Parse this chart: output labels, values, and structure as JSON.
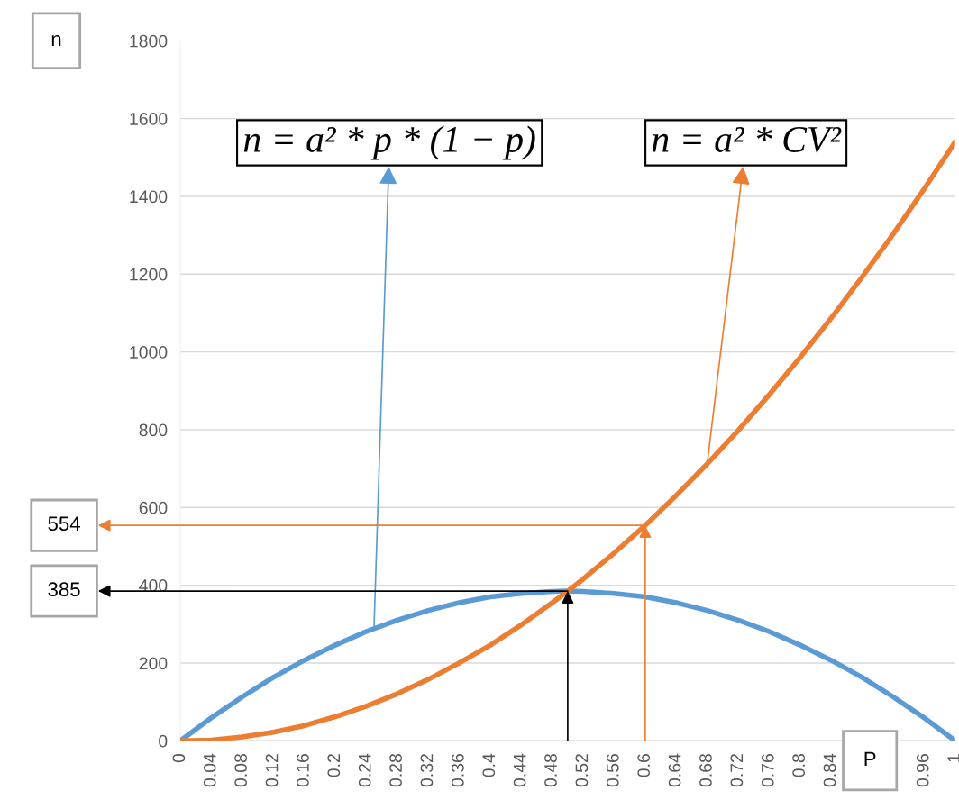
{
  "chart_data": {
    "type": "line",
    "xlabel": "P",
    "ylabel": "n",
    "x": [
      0,
      0.04,
      0.08,
      0.12,
      0.16,
      0.2,
      0.24,
      0.28,
      0.32,
      0.36,
      0.4,
      0.44,
      0.48,
      0.5,
      0.52,
      0.56,
      0.6,
      0.64,
      0.68,
      0.72,
      0.76,
      0.8,
      0.84,
      0.88,
      0.92,
      0.96,
      1
    ],
    "series": [
      {
        "color": "#5b9bd5",
        "values": [
          0,
          59,
          113,
          163,
          207,
          246,
          281,
          310,
          335,
          355,
          370,
          379,
          384,
          385,
          384,
          379,
          370,
          355,
          335,
          310,
          281,
          246,
          207,
          163,
          113,
          59,
          0
        ]
      },
      {
        "color": "#ed7d31",
        "values": [
          0,
          2,
          10,
          22,
          39,
          62,
          89,
          121,
          158,
          200,
          246,
          298,
          355,
          385,
          416,
          483,
          554,
          631,
          712,
          798,
          890,
          986,
          1087,
          1193,
          1303,
          1419,
          1540
        ]
      }
    ],
    "xlim": [
      0,
      1
    ],
    "ylim": [
      0,
      1800
    ],
    "xticks": [
      0,
      0.04,
      0.08,
      0.12,
      0.16,
      0.2,
      0.24,
      0.28,
      0.32,
      0.36,
      0.4,
      0.44,
      0.48,
      0.52,
      0.56,
      0.6,
      0.64,
      0.68,
      0.72,
      0.76,
      0.8,
      0.84,
      0.96,
      1
    ],
    "yticks": [
      0,
      200,
      400,
      600,
      800,
      1000,
      1200,
      1400,
      1600,
      1800
    ],
    "grid": "y",
    "marker": "none",
    "line_style": "solid",
    "annotations": [
      {
        "text": "n = a² * p * (1 − p)",
        "x": 0.25,
        "y": 289
      },
      {
        "text": "n = a² * CV²",
        "x": 0.68,
        "y": 712
      },
      {
        "text": "554",
        "x": 0.6,
        "y": 554
      },
      {
        "text": "385",
        "x": 0.5,
        "y": 385
      }
    ]
  }
}
